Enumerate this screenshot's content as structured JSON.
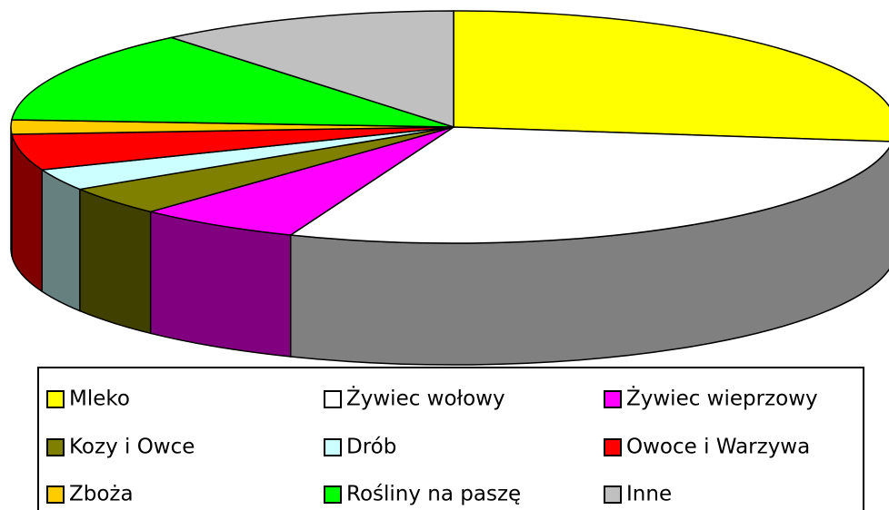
{
  "chart_data": {
    "type": "pie",
    "categories": [
      "Mleko",
      "Żywiec wołowy",
      "Żywiec wieprzowy",
      "Kozy i Owce",
      "Drób",
      "Owoce i Warzywa",
      "Zboża",
      "Rośliny na paszę",
      "Inne"
    ],
    "values": [
      27,
      29,
      6,
      4,
      3,
      5,
      2,
      13,
      11
    ],
    "colors": [
      "#ffff00",
      "#ffffff",
      "#ff00ff",
      "#808000",
      "#ccffff",
      "#ff0000",
      "#ffcc00",
      "#00ff00",
      "#c0c0c0"
    ],
    "legend": "bottom"
  }
}
